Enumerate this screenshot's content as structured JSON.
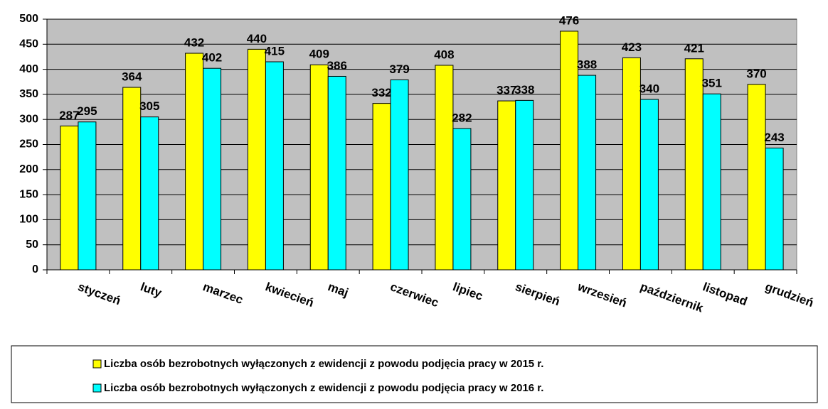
{
  "chart_data": {
    "type": "bar",
    "categories": [
      "styczeń",
      "luty",
      "marzec",
      "kwiecień",
      "maj",
      "czerwiec",
      "lipiec",
      "sierpień",
      "wrzesień",
      "październik",
      "listopad",
      "grudzień"
    ],
    "series": [
      {
        "name": "Liczba osób bezrobotnych wyłączonych z ewidencji z powodu podjęcia pracy w 2015 r.",
        "color": "#ffff00",
        "values": [
          287,
          364,
          432,
          440,
          409,
          332,
          408,
          337,
          476,
          423,
          421,
          370
        ]
      },
      {
        "name": "Liczba osób bezrobotnych wyłączonych z ewidencji z powodu podjęcia pracy w 2016 r.",
        "color": "#00ffff",
        "values": [
          295,
          305,
          402,
          415,
          386,
          379,
          282,
          338,
          388,
          340,
          351,
          243
        ]
      }
    ],
    "ylim": [
      0,
      500
    ],
    "yticks": [
      0,
      50,
      100,
      150,
      200,
      250,
      300,
      350,
      400,
      450,
      500
    ],
    "grid": true,
    "legend": "bottom",
    "plot_background": "#c0c0c0"
  }
}
